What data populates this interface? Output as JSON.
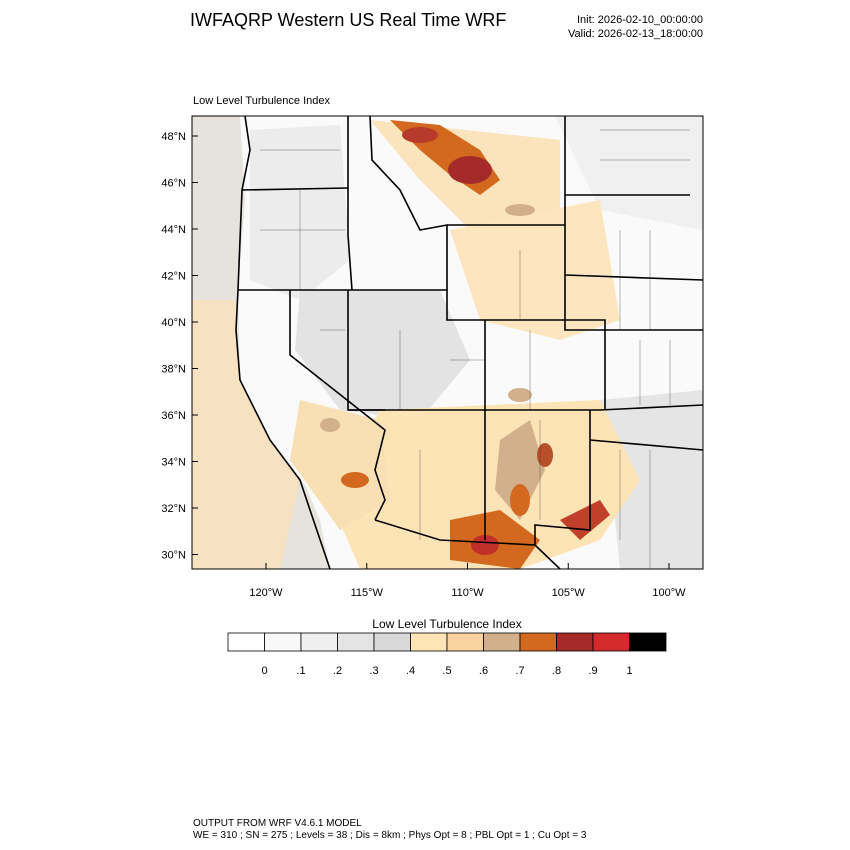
{
  "header": {
    "title": "IWFAQRP Western US Real Time WRF",
    "init": "Init: 2026-02-10_00:00:00",
    "valid": "Valid: 2026-02-13_18:00:00"
  },
  "map": {
    "title": "Low Level Turbulence Index",
    "lat_labels": [
      "48°N",
      "46°N",
      "44°N",
      "42°N",
      "40°N",
      "38°N",
      "36°N",
      "34°N",
      "32°N",
      "30°N"
    ],
    "lon_labels": [
      "120°W",
      "115°W",
      "110°W",
      "105°W",
      "100°W"
    ]
  },
  "colorbar": {
    "title": "Low Level Turbulence Index",
    "labels": [
      "0",
      ".1",
      ".2",
      ".3",
      ".4",
      ".5",
      ".6",
      ".7",
      ".8",
      ".9",
      "1"
    ],
    "colors": [
      "#ffffff",
      "#f8f8f8",
      "#efefef",
      "#e4e4e4",
      "#d8d8d8",
      "#ffe4b5",
      "#f8d3a0",
      "#d2b08c",
      "#d2691e",
      "#a52a2a",
      "#d42a2e",
      "#000000"
    ]
  },
  "footer": {
    "line1": "OUTPUT FROM WRF V4.6.1 MODEL",
    "line2": "WE = 310 ; SN = 275 ; Levels = 38 ; Dis = 8km ; Phys Opt = 8 ; PBL Opt = 1 ; Cu Opt = 3"
  }
}
